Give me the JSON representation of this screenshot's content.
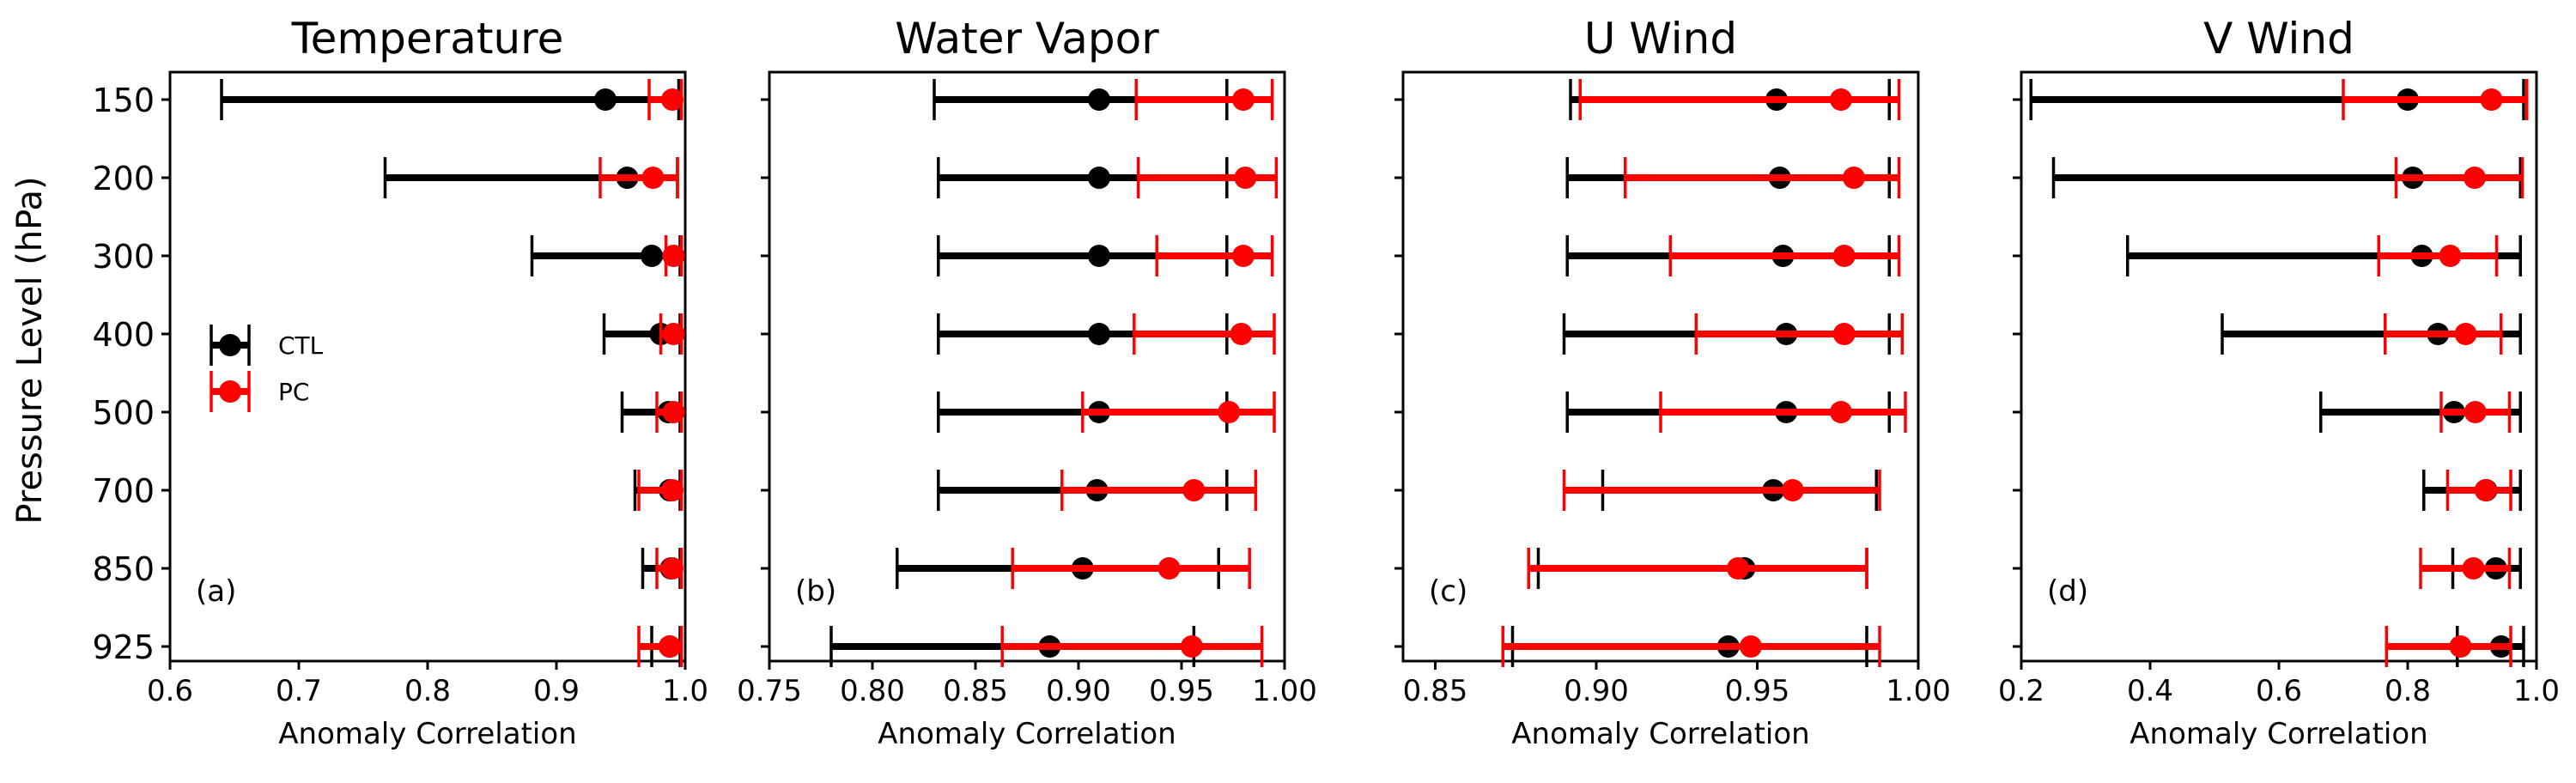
{
  "figure": {
    "ylabel": "Pressure Level (hPa)",
    "levels": [
      "150",
      "200",
      "300",
      "400",
      "500",
      "700",
      "850",
      "925"
    ],
    "legend": [
      {
        "label": "CTL",
        "color": "#000000"
      },
      {
        "label": "PC",
        "color": "#ff0000"
      }
    ]
  },
  "chart_data": [
    {
      "type": "errorbar",
      "title": "Temperature",
      "panel_label": "(a)",
      "xlabel": "Anomaly Correlation",
      "xlim": [
        0.6,
        1.0
      ],
      "xticks": [
        "0.6",
        "0.7",
        "0.8",
        "0.9",
        "1.0"
      ],
      "xtick_values": [
        0.6,
        0.7,
        0.8,
        0.9,
        1.0
      ],
      "categories": [
        "150",
        "200",
        "300",
        "400",
        "500",
        "700",
        "850",
        "925"
      ],
      "series": [
        {
          "name": "CTL",
          "color": "#000000",
          "values": [
            0.938,
            0.955,
            0.974,
            0.981,
            0.987,
            0.988,
            0.989,
            0.988
          ],
          "low": [
            0.64,
            0.767,
            0.881,
            0.937,
            0.951,
            0.961,
            0.967,
            0.974
          ],
          "high": [
            0.995,
            0.994,
            0.996,
            0.996,
            0.996,
            0.996,
            0.996,
            0.996
          ]
        },
        {
          "name": "PC",
          "color": "#ff0000",
          "values": [
            0.99,
            0.975,
            0.991,
            0.991,
            0.991,
            0.99,
            0.99,
            0.988
          ],
          "low": [
            0.972,
            0.934,
            0.985,
            0.981,
            0.978,
            0.964,
            0.978,
            0.964
          ],
          "high": [
            0.997,
            0.994,
            0.997,
            0.997,
            0.997,
            0.997,
            0.997,
            0.997
          ]
        }
      ]
    },
    {
      "type": "errorbar",
      "title": "Water Vapor",
      "panel_label": "(b)",
      "xlabel": "Anomaly Correlation",
      "xlim": [
        0.75,
        1.0
      ],
      "xticks": [
        "0.75",
        "0.80",
        "0.85",
        "0.90",
        "0.95",
        "1.00"
      ],
      "xtick_values": [
        0.75,
        0.8,
        0.85,
        0.9,
        0.95,
        1.0
      ],
      "categories": [
        "150",
        "200",
        "300",
        "400",
        "500",
        "700",
        "850",
        "925"
      ],
      "series": [
        {
          "name": "CTL",
          "color": "#000000",
          "values": [
            0.91,
            0.91,
            0.91,
            0.91,
            0.91,
            0.909,
            0.902,
            0.886
          ],
          "low": [
            0.83,
            0.832,
            0.832,
            0.832,
            0.832,
            0.832,
            0.812,
            0.78
          ],
          "high": [
            0.972,
            0.972,
            0.972,
            0.972,
            0.972,
            0.972,
            0.968,
            0.956
          ]
        },
        {
          "name": "PC",
          "color": "#ff0000",
          "values": [
            0.98,
            0.981,
            0.98,
            0.979,
            0.973,
            0.956,
            0.944,
            0.955
          ],
          "low": [
            0.928,
            0.929,
            0.938,
            0.927,
            0.902,
            0.892,
            0.868,
            0.863
          ],
          "high": [
            0.994,
            0.996,
            0.994,
            0.995,
            0.995,
            0.986,
            0.983,
            0.989
          ]
        }
      ]
    },
    {
      "type": "errorbar",
      "title": "U Wind",
      "panel_label": "(c)",
      "xlabel": "Anomaly Correlation",
      "xlim": [
        0.84,
        1.0
      ],
      "xticks": [
        "0.85",
        "0.90",
        "0.95",
        "1.00"
      ],
      "xtick_values": [
        0.85,
        0.9,
        0.95,
        1.0
      ],
      "categories": [
        "150",
        "200",
        "300",
        "400",
        "500",
        "700",
        "850",
        "925"
      ],
      "series": [
        {
          "name": "CTL",
          "color": "#000000",
          "values": [
            0.956,
            0.957,
            0.958,
            0.959,
            0.959,
            0.955,
            0.946,
            0.941
          ],
          "low": [
            0.892,
            0.891,
            0.891,
            0.89,
            0.891,
            0.902,
            0.882,
            0.874
          ],
          "high": [
            0.991,
            0.991,
            0.991,
            0.991,
            0.991,
            0.987,
            0.984,
            0.984
          ]
        },
        {
          "name": "PC",
          "color": "#ff0000",
          "values": [
            0.976,
            0.98,
            0.977,
            0.977,
            0.976,
            0.961,
            0.944,
            0.948
          ],
          "low": [
            0.895,
            0.909,
            0.923,
            0.931,
            0.92,
            0.89,
            0.879,
            0.871
          ],
          "high": [
            0.994,
            0.994,
            0.994,
            0.995,
            0.996,
            0.988,
            0.984,
            0.988
          ]
        }
      ]
    },
    {
      "type": "errorbar",
      "title": "V Wind",
      "panel_label": "(d)",
      "xlabel": "Anomaly Correlation",
      "xlim": [
        0.2,
        1.0
      ],
      "xticks": [
        "0.2",
        "0.4",
        "0.6",
        "0.8",
        "1.0"
      ],
      "xtick_values": [
        0.2,
        0.4,
        0.6,
        0.8,
        1.0
      ],
      "categories": [
        "150",
        "200",
        "300",
        "400",
        "500",
        "700",
        "850",
        "925"
      ],
      "series": [
        {
          "name": "CTL",
          "color": "#000000",
          "values": [
            0.8,
            0.808,
            0.822,
            0.847,
            0.872,
            0.922,
            0.937,
            0.945
          ],
          "low": [
            0.215,
            0.25,
            0.365,
            0.512,
            0.665,
            0.825,
            0.87,
            0.877
          ],
          "high": [
            0.98,
            0.975,
            0.975,
            0.975,
            0.975,
            0.975,
            0.975,
            0.98
          ]
        },
        {
          "name": "PC",
          "color": "#ff0000",
          "values": [
            0.93,
            0.904,
            0.866,
            0.89,
            0.905,
            0.921,
            0.902,
            0.882
          ],
          "low": [
            0.7,
            0.782,
            0.755,
            0.765,
            0.852,
            0.862,
            0.82,
            0.767
          ],
          "high": [
            0.985,
            0.978,
            0.938,
            0.945,
            0.958,
            0.96,
            0.958,
            0.96
          ]
        }
      ]
    }
  ]
}
